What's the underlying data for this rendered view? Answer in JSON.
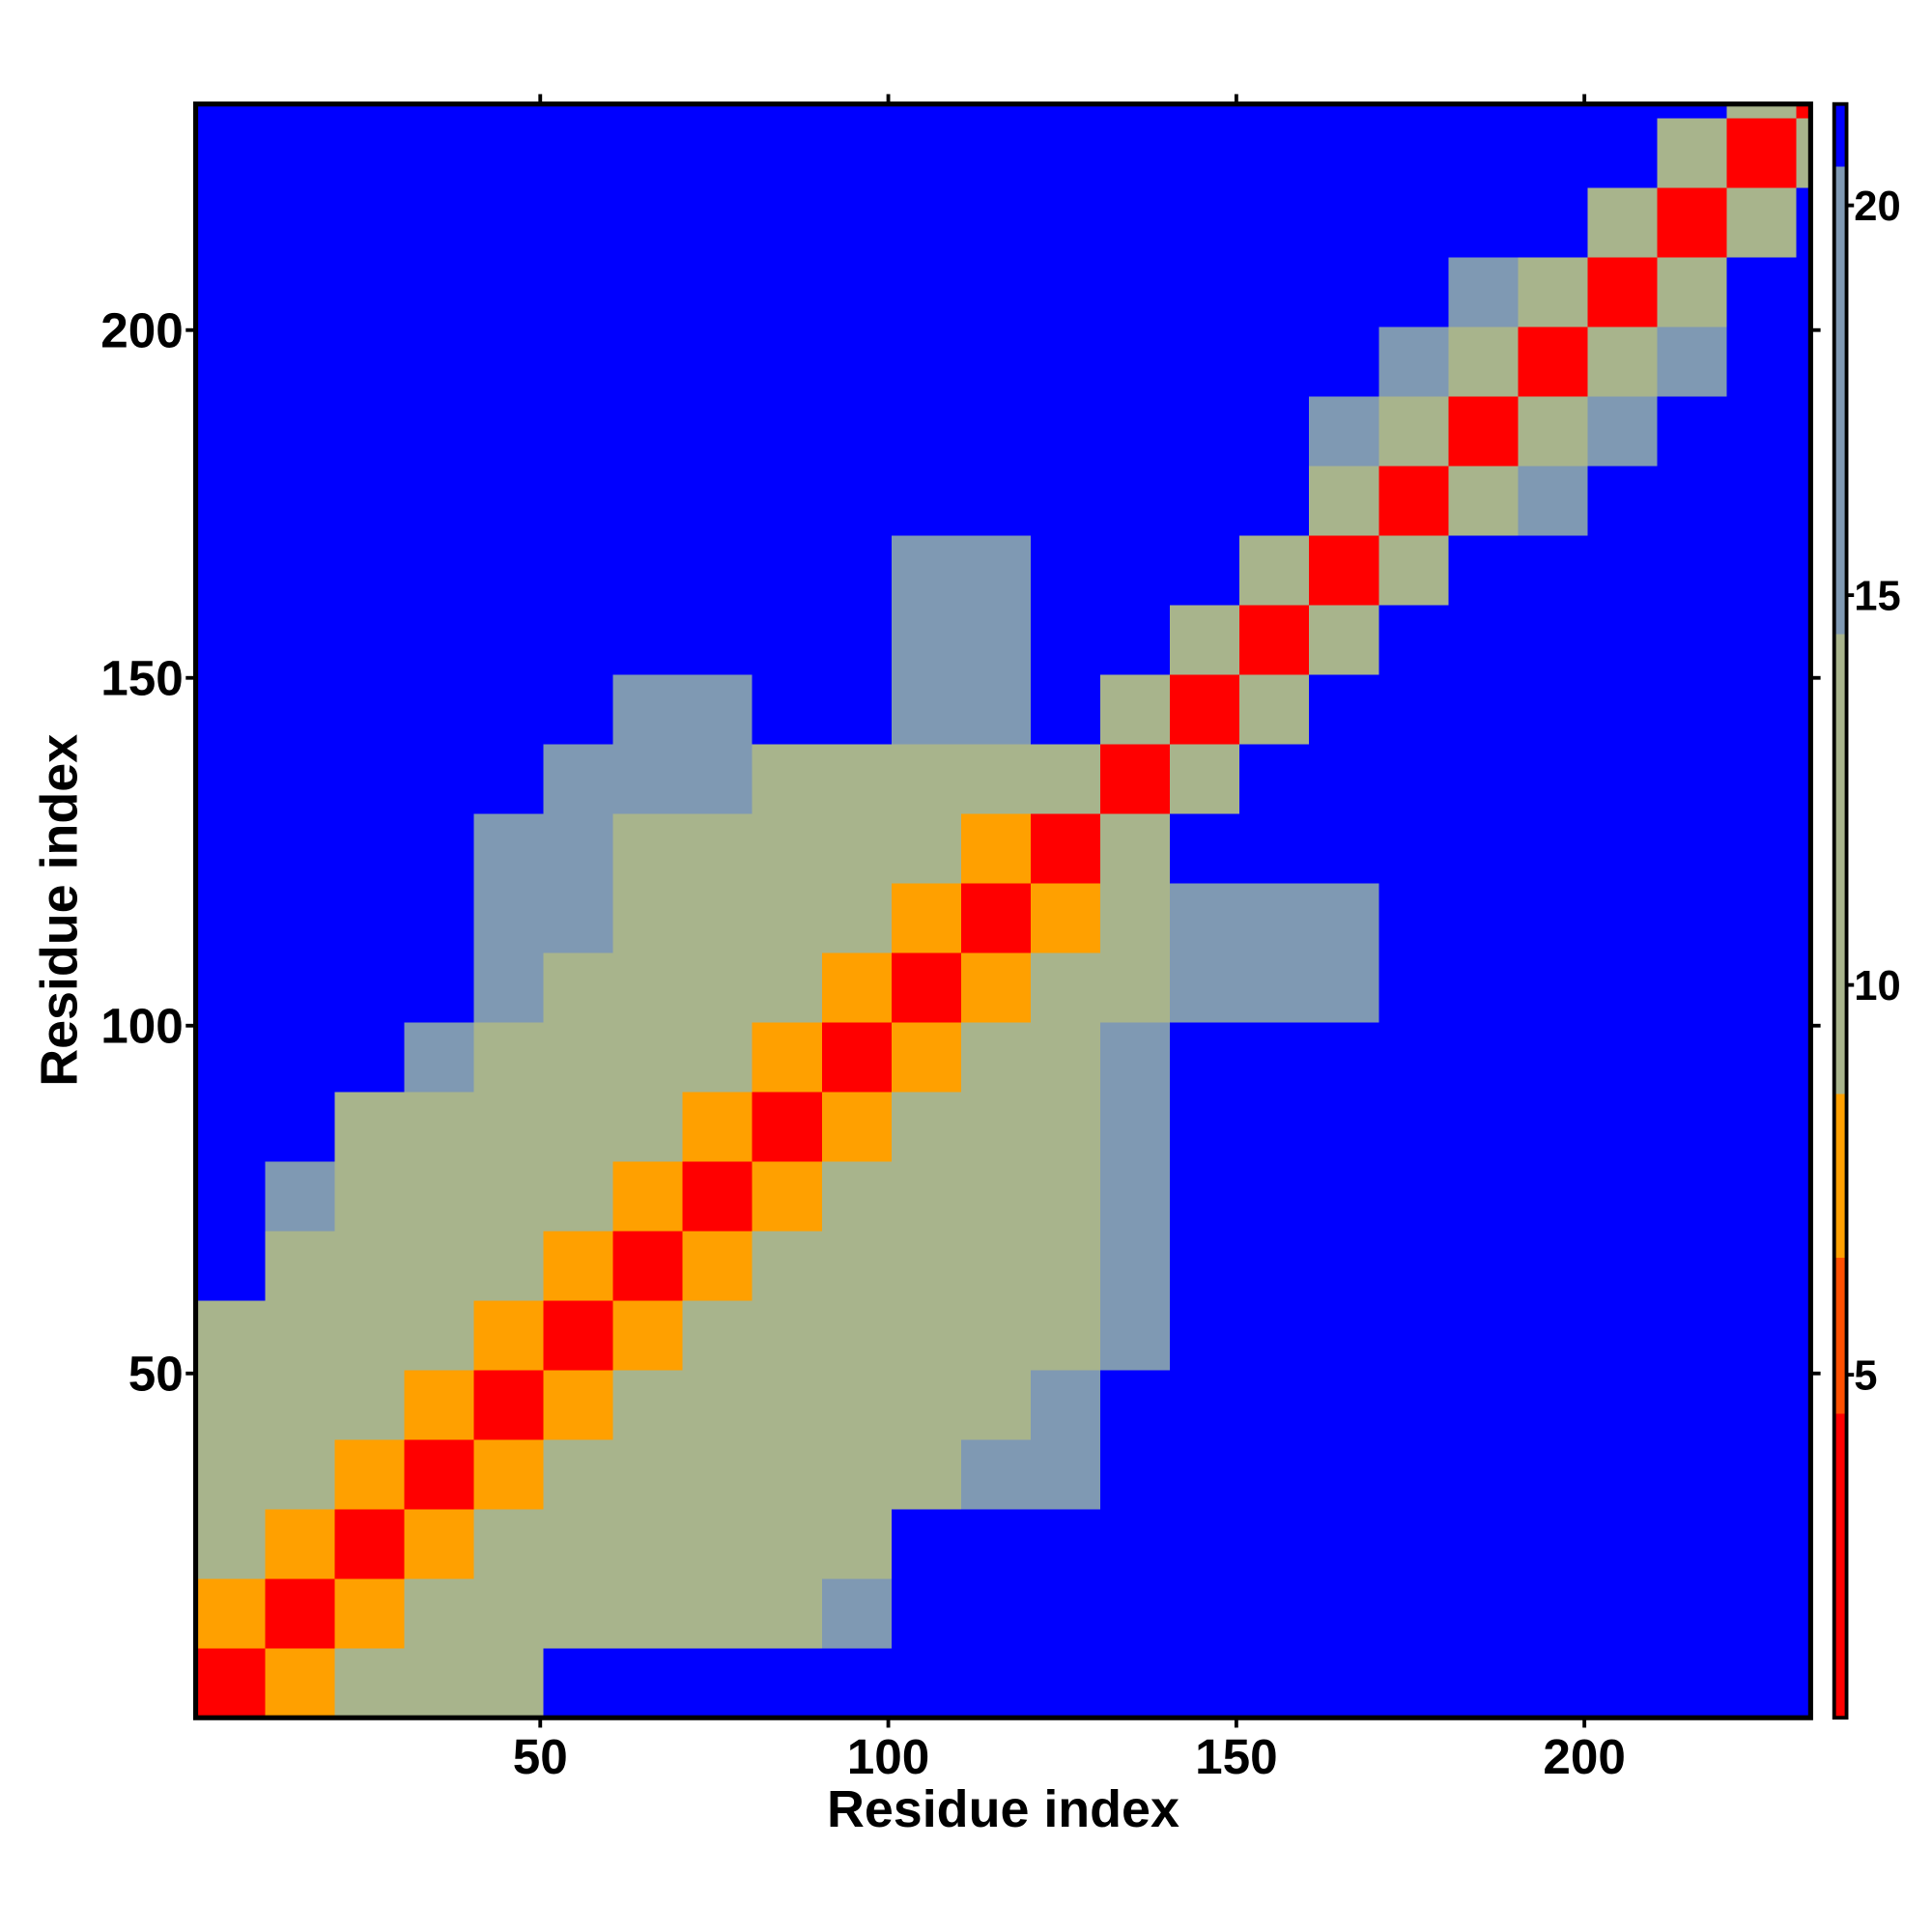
{
  "chart_data": {
    "type": "heatmap",
    "x_label": "Residue index",
    "y_label": "Residue index",
    "xbins": [
      0.5,
      10.5,
      20.5,
      30.5,
      40.5,
      50.5,
      60.5,
      70.5,
      80.5,
      90.5,
      100.5,
      110.5,
      120.5,
      130.5,
      140.5,
      150.5,
      160.5,
      170.5,
      180.5,
      190.5,
      200.5,
      210.5,
      220.5,
      230.5,
      232.5
    ],
    "ybins": [
      0.5,
      10.5,
      20.5,
      30.5,
      40.5,
      50.5,
      60.5,
      70.5,
      80.5,
      90.5,
      100.5,
      110.5,
      120.5,
      130.5,
      140.5,
      150.5,
      160.5,
      170.5,
      180.5,
      190.5,
      200.5,
      210.5,
      220.5,
      230.5,
      232.5
    ],
    "values": [
      [
        4,
        8,
        12,
        12,
        14,
        21,
        21,
        21,
        21,
        21,
        21,
        21,
        21,
        21,
        21,
        21,
        21,
        21,
        21,
        21,
        21,
        21,
        21,
        21
      ],
      [
        8,
        4,
        8,
        12,
        12,
        14,
        14,
        14,
        14,
        16,
        21,
        21,
        21,
        21,
        21,
        21,
        21,
        21,
        21,
        21,
        21,
        21,
        21,
        21
      ],
      [
        12,
        8,
        4,
        8,
        12,
        12,
        14,
        14,
        14,
        14,
        21,
        21,
        21,
        21,
        21,
        21,
        21,
        21,
        21,
        21,
        21,
        21,
        21,
        21
      ],
      [
        12,
        12,
        8,
        4,
        8,
        12,
        12,
        14,
        14,
        14,
        14,
        16,
        16,
        21,
        21,
        21,
        21,
        21,
        21,
        21,
        21,
        21,
        21,
        21
      ],
      [
        14,
        12,
        12,
        8,
        4,
        8,
        12,
        12,
        14,
        14,
        14,
        14,
        16,
        21,
        21,
        21,
        21,
        21,
        21,
        21,
        21,
        21,
        21,
        21
      ],
      [
        14,
        14,
        12,
        12,
        8,
        4,
        8,
        12,
        12,
        14,
        14,
        14,
        14,
        16,
        21,
        21,
        21,
        21,
        21,
        21,
        21,
        21,
        21,
        21
      ],
      [
        21,
        14,
        14,
        12,
        12,
        8,
        4,
        8,
        12,
        12,
        14,
        14,
        14,
        16,
        21,
        21,
        21,
        21,
        21,
        21,
        21,
        21,
        21,
        21
      ],
      [
        21,
        16,
        14,
        14,
        12,
        12,
        8,
        4,
        8,
        12,
        12,
        14,
        14,
        16,
        21,
        21,
        21,
        21,
        21,
        21,
        21,
        21,
        21,
        21
      ],
      [
        21,
        21,
        14,
        14,
        14,
        12,
        12,
        8,
        4,
        8,
        12,
        12,
        14,
        16,
        21,
        21,
        21,
        21,
        21,
        21,
        21,
        21,
        21,
        21
      ],
      [
        21,
        21,
        21,
        16,
        14,
        14,
        12,
        12,
        8,
        4,
        8,
        12,
        12,
        16,
        21,
        21,
        21,
        21,
        21,
        21,
        21,
        21,
        21,
        21
      ],
      [
        21,
        21,
        21,
        21,
        16,
        14,
        14,
        12,
        12,
        8,
        4,
        8,
        12,
        14,
        17,
        17,
        17,
        21,
        21,
        21,
        21,
        21,
        21,
        21
      ],
      [
        21,
        21,
        21,
        21,
        16,
        16,
        14,
        14,
        12,
        12,
        8,
        4,
        8,
        14,
        17,
        17,
        17,
        21,
        21,
        21,
        21,
        21,
        21,
        21
      ],
      [
        21,
        21,
        21,
        21,
        16,
        16,
        14,
        14,
        14,
        12,
        12,
        8,
        4,
        10,
        21,
        21,
        21,
        21,
        21,
        21,
        21,
        21,
        21,
        21
      ],
      [
        21,
        21,
        21,
        21,
        21,
        16,
        16,
        16,
        14,
        14,
        12,
        12,
        10,
        4,
        10,
        21,
        21,
        21,
        21,
        21,
        21,
        21,
        21,
        21
      ],
      [
        21,
        21,
        21,
        21,
        21,
        21,
        17,
        17,
        21,
        21,
        17,
        17,
        21,
        10,
        4,
        10,
        21,
        21,
        21,
        21,
        21,
        21,
        21,
        21
      ],
      [
        21,
        21,
        21,
        21,
        21,
        21,
        21,
        21,
        21,
        21,
        17,
        17,
        21,
        21,
        10,
        4,
        10,
        21,
        21,
        21,
        21,
        21,
        21,
        21
      ],
      [
        21,
        21,
        21,
        21,
        21,
        21,
        21,
        21,
        21,
        21,
        17,
        17,
        21,
        21,
        21,
        10,
        4,
        10,
        21,
        21,
        21,
        21,
        21,
        21
      ],
      [
        21,
        21,
        21,
        21,
        21,
        21,
        21,
        21,
        21,
        21,
        21,
        21,
        21,
        21,
        21,
        21,
        10,
        4,
        10,
        15,
        21,
        21,
        21,
        21
      ],
      [
        21,
        21,
        21,
        21,
        21,
        21,
        21,
        21,
        21,
        21,
        21,
        21,
        21,
        21,
        21,
        21,
        15,
        10,
        4,
        10,
        15,
        21,
        21,
        21
      ],
      [
        21,
        21,
        21,
        21,
        21,
        21,
        21,
        21,
        21,
        21,
        21,
        21,
        21,
        21,
        21,
        21,
        21,
        15,
        10,
        4,
        10,
        15,
        21,
        21
      ],
      [
        21,
        21,
        21,
        21,
        21,
        21,
        21,
        21,
        21,
        21,
        21,
        21,
        21,
        21,
        21,
        21,
        21,
        21,
        15,
        10,
        4,
        10,
        21,
        21
      ],
      [
        21,
        21,
        21,
        21,
        21,
        21,
        21,
        21,
        21,
        21,
        21,
        21,
        21,
        21,
        21,
        21,
        21,
        21,
        21,
        21,
        10,
        4,
        10,
        21
      ],
      [
        21,
        21,
        21,
        21,
        21,
        21,
        21,
        21,
        21,
        21,
        21,
        21,
        21,
        21,
        21,
        21,
        21,
        21,
        21,
        21,
        21,
        10,
        4,
        10
      ],
      [
        21,
        21,
        21,
        21,
        21,
        21,
        21,
        21,
        21,
        21,
        21,
        21,
        21,
        21,
        21,
        21,
        21,
        21,
        21,
        21,
        21,
        21,
        10,
        4
      ]
    ],
    "xlim": [
      0.5,
      232.5
    ],
    "ylim": [
      0.5,
      232.5
    ],
    "xticks": [
      50,
      100,
      150,
      200
    ],
    "yticks": [
      50,
      100,
      150,
      200
    ],
    "zlim": [
      0.6,
      21.3
    ],
    "zticks": [
      5,
      10,
      15,
      20
    ],
    "colorscale": [
      [
        4.5,
        "#ff0000"
      ],
      [
        6.5,
        "#ff5000"
      ],
      [
        8.6,
        "#ffa000"
      ],
      [
        14.5,
        "#a8b48c"
      ],
      [
        20.5,
        "#7f99b3"
      ],
      [
        21.3,
        "#0000ff"
      ]
    ]
  }
}
